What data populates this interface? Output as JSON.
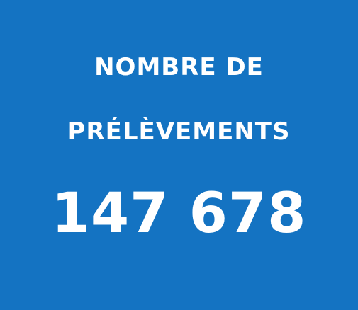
{
  "stat": {
    "label_line_1": "NOMBRE DE",
    "label_line_2": "PRÉLÈVEMENTS",
    "value": "147 678"
  },
  "colors": {
    "background": "#1473c2",
    "text": "#ffffff"
  }
}
